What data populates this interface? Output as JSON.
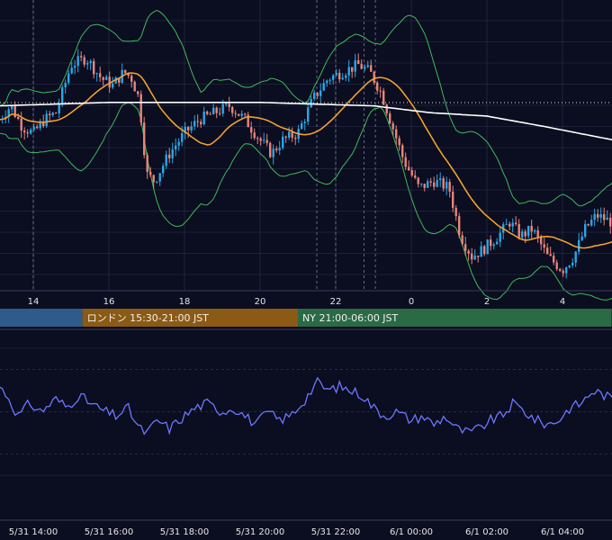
{
  "chart_data": {
    "type": "candlestick",
    "colors": {
      "background": "#0b0d20",
      "bull": "#2aa7e8",
      "bear": "#e8857a",
      "sma_orange": "#f0a030",
      "sma_white": "#ffffff",
      "bollinger": "#3dbb5a",
      "rsi_line": "#6b78ff",
      "grid": "#2a2d48",
      "session_tokyo": "#2e5b8a",
      "session_london": "#8b5a14",
      "session_ny": "#2a6a44"
    },
    "x_tick_labels": [
      "14",
      "16",
      "18",
      "20",
      "22",
      "0",
      "2",
      "4"
    ],
    "sessions": [
      {
        "name": "tokyo",
        "label": "",
        "start_hour": 13.1,
        "end_hour": 15.3
      },
      {
        "name": "london",
        "label": "ロンドン 15:30-21:00 JST",
        "start_hour": 15.3,
        "end_hour": 21.0
      },
      {
        "name": "ny",
        "label": "NY 21:00-06:00 JST",
        "start_hour": 21.0,
        "end_hour": 29.3
      }
    ],
    "date_labels": [
      "5/31 14:00",
      "5/31 16:00",
      "5/31 18:00",
      "5/31 20:00",
      "5/31 22:00",
      "6/1 00:00",
      "6/1 02:00",
      "6/1 04:00"
    ],
    "price_keypoints": [
      [
        13.1,
        44
      ],
      [
        13.4,
        48
      ],
      [
        13.7,
        42
      ],
      [
        14.0,
        40
      ],
      [
        14.3,
        44
      ],
      [
        14.6,
        46
      ],
      [
        15.0,
        60
      ],
      [
        15.4,
        62
      ],
      [
        15.8,
        56
      ],
      [
        16.1,
        54
      ],
      [
        16.4,
        58
      ],
      [
        16.6,
        56
      ],
      [
        16.8,
        50
      ],
      [
        17.0,
        28
      ],
      [
        17.2,
        26
      ],
      [
        17.6,
        34
      ],
      [
        18.0,
        40
      ],
      [
        18.4,
        44
      ],
      [
        18.8,
        46
      ],
      [
        19.2,
        48
      ],
      [
        19.6,
        44
      ],
      [
        20.0,
        38
      ],
      [
        20.3,
        34
      ],
      [
        20.6,
        38
      ],
      [
        21.0,
        40
      ],
      [
        21.4,
        50
      ],
      [
        21.8,
        56
      ],
      [
        22.2,
        58
      ],
      [
        22.6,
        60
      ],
      [
        22.9,
        58
      ],
      [
        23.2,
        52
      ],
      [
        23.5,
        42
      ],
      [
        23.8,
        32
      ],
      [
        24.2,
        24
      ],
      [
        24.6,
        26
      ],
      [
        25.0,
        24
      ],
      [
        25.3,
        10
      ],
      [
        25.6,
        4
      ],
      [
        25.9,
        6
      ],
      [
        26.3,
        10
      ],
      [
        26.6,
        14
      ],
      [
        26.9,
        10
      ],
      [
        27.2,
        12
      ],
      [
        27.6,
        4
      ],
      [
        28.0,
        0
      ],
      [
        28.3,
        4
      ],
      [
        28.6,
        12
      ],
      [
        28.9,
        16
      ],
      [
        29.3,
        14
      ]
    ],
    "rsi_keypoints": [
      [
        13.1,
        62
      ],
      [
        13.3,
        58
      ],
      [
        13.6,
        48
      ],
      [
        13.9,
        54
      ],
      [
        14.2,
        50
      ],
      [
        14.6,
        56
      ],
      [
        14.9,
        52
      ],
      [
        15.2,
        58
      ],
      [
        15.5,
        54
      ],
      [
        15.9,
        50
      ],
      [
        16.2,
        48
      ],
      [
        16.5,
        52
      ],
      [
        16.8,
        42
      ],
      [
        17.0,
        40
      ],
      [
        17.3,
        46
      ],
      [
        17.6,
        42
      ],
      [
        18.0,
        48
      ],
      [
        18.3,
        52
      ],
      [
        18.6,
        54
      ],
      [
        19.0,
        50
      ],
      [
        19.3,
        52
      ],
      [
        19.6,
        48
      ],
      [
        19.9,
        44
      ],
      [
        20.2,
        50
      ],
      [
        20.5,
        46
      ],
      [
        20.8,
        48
      ],
      [
        21.2,
        56
      ],
      [
        21.5,
        64
      ],
      [
        21.8,
        60
      ],
      [
        22.1,
        62
      ],
      [
        22.4,
        60
      ],
      [
        22.7,
        58
      ],
      [
        23.0,
        52
      ],
      [
        23.3,
        48
      ],
      [
        23.6,
        50
      ],
      [
        24.0,
        46
      ],
      [
        24.3,
        48
      ],
      [
        24.6,
        44
      ],
      [
        24.9,
        48
      ],
      [
        25.2,
        42
      ],
      [
        25.5,
        40
      ],
      [
        25.8,
        42
      ],
      [
        26.1,
        46
      ],
      [
        26.4,
        48
      ],
      [
        26.7,
        54
      ],
      [
        27.0,
        50
      ],
      [
        27.3,
        46
      ],
      [
        27.6,
        44
      ],
      [
        27.9,
        46
      ],
      [
        28.2,
        52
      ],
      [
        28.5,
        54
      ],
      [
        28.8,
        60
      ],
      [
        29.1,
        58
      ],
      [
        29.3,
        56
      ]
    ]
  }
}
